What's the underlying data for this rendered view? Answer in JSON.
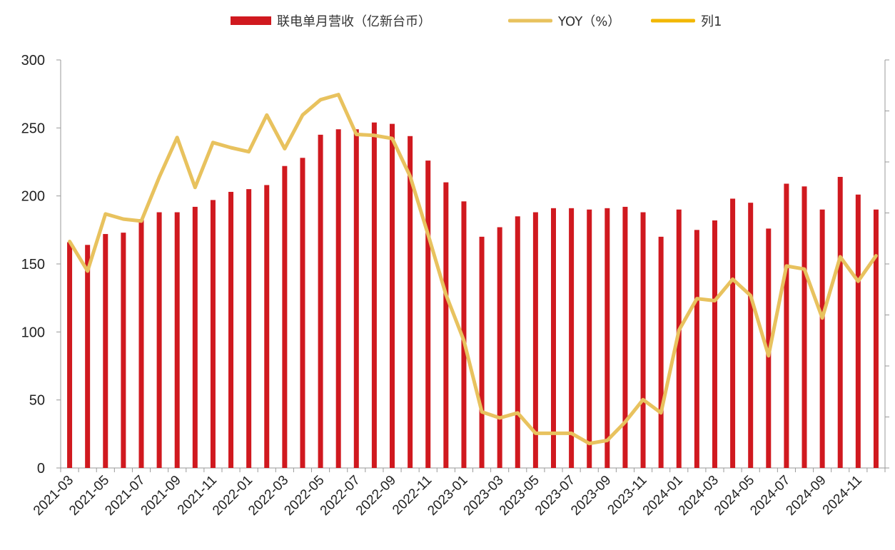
{
  "chart_data": {
    "type": "bar+line",
    "title": "",
    "xlabel": "",
    "ylabel": "",
    "ylim": [
      0,
      300
    ],
    "yticks": [
      0,
      50,
      100,
      150,
      200,
      250,
      300
    ],
    "categories": [
      "2021-03",
      "2021-04",
      "2021-05",
      "2021-06",
      "2021-07",
      "2021-08",
      "2021-09",
      "2021-10",
      "2021-11",
      "2021-12",
      "2022-01",
      "2022-02",
      "2022-03",
      "2022-04",
      "2022-05",
      "2022-06",
      "2022-07",
      "2022-08",
      "2022-09",
      "2022-10",
      "2022-11",
      "2022-12",
      "2023-01",
      "2023-02",
      "2023-03",
      "2023-04",
      "2023-05",
      "2023-06",
      "2023-07",
      "2023-08",
      "2023-09",
      "2023-10",
      "2023-11",
      "2023-12",
      "2024-01",
      "2024-02",
      "2024-03",
      "2024-04",
      "2024-05",
      "2024-06",
      "2024-07",
      "2024-08",
      "2024-09",
      "2024-10",
      "2024-11",
      "2024-12"
    ],
    "xtick_labels": [
      "2021-03",
      "2021-05",
      "2021-07",
      "2021-09",
      "2021-11",
      "2022-01",
      "2022-03",
      "2022-05",
      "2022-07",
      "2022-09",
      "2022-11",
      "2023-01",
      "2023-03",
      "2023-05",
      "2023-07",
      "2023-09",
      "2023-11",
      "2024-01",
      "2024-03",
      "2024-05",
      "2024-07",
      "2024-09",
      "2024-11"
    ],
    "legend": [
      {
        "name": "联电单月营收（亿新台币）",
        "color": "#d0191f",
        "shape": "bar"
      },
      {
        "name": "YOY（%）",
        "color": "#e8c25e",
        "shape": "line"
      },
      {
        "name": "列1",
        "color": "#f2b705",
        "shape": "line"
      }
    ],
    "legend_position": "top-center",
    "series": [
      {
        "name": "联电单月营收（亿新台币）",
        "type": "bar",
        "color": "#d0191f",
        "values": [
          166,
          164,
          172,
          173,
          183,
          188,
          188,
          192,
          197,
          203,
          205,
          208,
          222,
          228,
          245,
          249,
          249,
          254,
          253,
          244,
          226,
          210,
          196,
          170,
          177,
          185,
          188,
          191,
          191,
          190,
          191,
          192,
          188,
          170,
          190,
          175,
          182,
          198,
          195,
          176,
          209,
          207,
          190,
          214,
          201,
          190
        ]
      },
      {
        "name": "YOY（%）",
        "type": "line",
        "color": "#e8c25e",
        "axis": "secondary",
        "ylim": [
          0,
          40
        ],
        "values": [
          22.2,
          19.3,
          24.9,
          24.4,
          24.2,
          28.5,
          32.4,
          27.5,
          31.9,
          31.4,
          31.0,
          34.6,
          31.3,
          34.6,
          36.1,
          36.6,
          32.7,
          32.6,
          32.3,
          28.6,
          22.9,
          17.0,
          12.5,
          5.5,
          4.9,
          5.4,
          3.4,
          3.4,
          3.4,
          2.4,
          2.7,
          4.5,
          6.7,
          5.4,
          13.5,
          16.6,
          16.4,
          18.5,
          16.9,
          11.0,
          19.8,
          19.5,
          14.7,
          20.7,
          18.3,
          20.8
        ]
      }
    ],
    "secondary_axis": {
      "ylim": [
        0,
        40
      ],
      "ticks": [
        0,
        5,
        10,
        15,
        20,
        25,
        30,
        35,
        40
      ],
      "labels_visible": false
    }
  }
}
